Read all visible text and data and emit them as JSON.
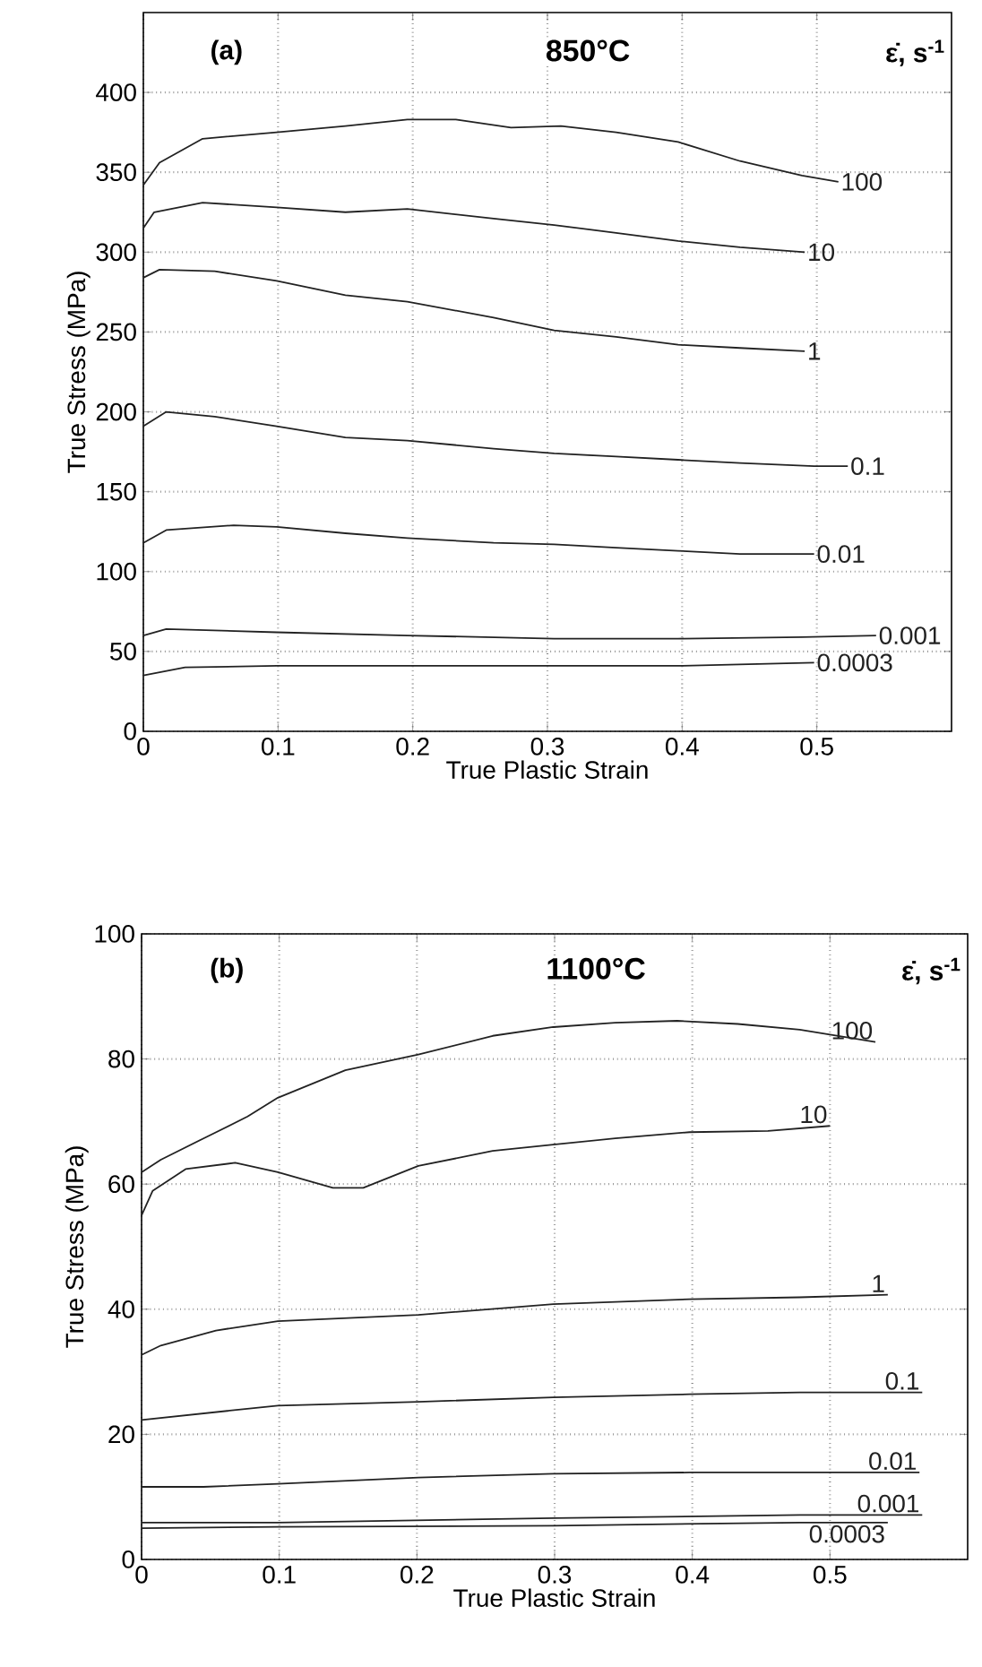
{
  "chart_data": [
    {
      "type": "line",
      "xlabel": "True Plastic Strain",
      "ylabel": "True Stress (MPa)",
      "annotations": [
        "(a)",
        "850°C"
      ],
      "legend_title": "ε̇, s$^{-1}$",
      "xlim": [
        0,
        0.6
      ],
      "ylim": [
        0,
        450
      ],
      "xticks": [
        0,
        0.1,
        0.2,
        0.3,
        0.4,
        0.5
      ],
      "yticks": [
        0,
        50,
        100,
        150,
        200,
        250,
        300,
        350,
        400
      ],
      "grid": true,
      "series": [
        {
          "name": "100",
          "color": "#222222",
          "x": [
            0,
            0.012,
            0.044,
            0.099,
            0.15,
            0.196,
            0.232,
            0.273,
            0.31,
            0.351,
            0.397,
            0.443,
            0.489,
            0.516
          ],
          "values": [
            342,
            356,
            371,
            375,
            379,
            383,
            383,
            378,
            379,
            375,
            369,
            357,
            348,
            344
          ]
        },
        {
          "name": "10",
          "color": "#222222",
          "x": [
            0,
            0.008,
            0.044,
            0.099,
            0.15,
            0.196,
            0.26,
            0.305,
            0.351,
            0.397,
            0.443,
            0.491
          ],
          "values": [
            315,
            325,
            331,
            328,
            325,
            327,
            321,
            317,
            312,
            307,
            303,
            300
          ]
        },
        {
          "name": "1",
          "color": "#222222",
          "x": [
            0,
            0.012,
            0.053,
            0.099,
            0.15,
            0.196,
            0.26,
            0.305,
            0.351,
            0.397,
            0.443,
            0.491
          ],
          "values": [
            284,
            289,
            288,
            282,
            273,
            269,
            259,
            251,
            247,
            242,
            240,
            238
          ]
        },
        {
          "name": "0.1",
          "color": "#222222",
          "x": [
            0,
            0.017,
            0.053,
            0.099,
            0.15,
            0.196,
            0.26,
            0.305,
            0.351,
            0.397,
            0.443,
            0.498,
            0.523
          ],
          "values": [
            191,
            200,
            197,
            191,
            184,
            182,
            177,
            174,
            172,
            170,
            168,
            166,
            166
          ]
        },
        {
          "name": "0.01",
          "color": "#222222",
          "x": [
            0,
            0.017,
            0.067,
            0.099,
            0.15,
            0.196,
            0.26,
            0.305,
            0.351,
            0.397,
            0.443,
            0.498
          ],
          "values": [
            118,
            126,
            129,
            128,
            124,
            121,
            118,
            117,
            115,
            113,
            111,
            111
          ]
        },
        {
          "name": "0.001",
          "color": "#222222",
          "x": [
            0,
            0.017,
            0.099,
            0.196,
            0.305,
            0.397,
            0.489,
            0.544
          ],
          "values": [
            60,
            64,
            62,
            60,
            58,
            58,
            59,
            60
          ]
        },
        {
          "name": "0.0003",
          "color": "#222222",
          "x": [
            0,
            0.031,
            0.099,
            0.196,
            0.305,
            0.397,
            0.498
          ],
          "values": [
            35,
            40,
            41,
            41,
            41,
            41,
            43
          ]
        }
      ]
    },
    {
      "type": "line",
      "xlabel": "True Plastic Strain",
      "ylabel": "True Stress (MPa)",
      "annotations": [
        "(b)",
        "1100°C"
      ],
      "legend_title": "ε̇, s$^{-1}$",
      "xlim": [
        0,
        0.6
      ],
      "ylim": [
        0,
        100
      ],
      "xticks": [
        0,
        0.1,
        0.2,
        0.3,
        0.4,
        0.5
      ],
      "yticks": [
        0,
        20,
        40,
        60,
        80,
        100
      ],
      "grid": true,
      "series": [
        {
          "name": "100",
          "color": "#222222",
          "x": [
            0,
            0.014,
            0.045,
            0.077,
            0.099,
            0.148,
            0.201,
            0.255,
            0.299,
            0.344,
            0.389,
            0.433,
            0.478,
            0.533
          ],
          "values": [
            61.9,
            63.9,
            67.3,
            70.8,
            73.8,
            78.2,
            80.7,
            83.7,
            85.1,
            85.8,
            86.1,
            85.6,
            84.7,
            82.7
          ]
        },
        {
          "name": "10",
          "color": "#222222",
          "x": [
            0,
            0.008,
            0.032,
            0.068,
            0.099,
            0.139,
            0.161,
            0.201,
            0.255,
            0.299,
            0.344,
            0.398,
            0.455,
            0.5
          ],
          "values": [
            55,
            58.9,
            62.4,
            63.4,
            61.9,
            59.4,
            59.4,
            62.9,
            65.3,
            66.3,
            67.3,
            68.3,
            68.5,
            69.3
          ]
        },
        {
          "name": "1",
          "color": "#222222",
          "x": [
            0,
            0.014,
            0.054,
            0.099,
            0.201,
            0.299,
            0.398,
            0.478,
            0.542
          ],
          "values": [
            32.7,
            34.2,
            36.6,
            38.1,
            39.1,
            40.8,
            41.6,
            41.9,
            42.3
          ]
        },
        {
          "name": "0.1",
          "color": "#222222",
          "x": [
            0,
            0.099,
            0.201,
            0.299,
            0.398,
            0.478,
            0.567
          ],
          "values": [
            22.3,
            24.6,
            25.2,
            25.9,
            26.4,
            26.7,
            26.7
          ]
        },
        {
          "name": "0.01",
          "color": "#222222",
          "x": [
            0,
            0.045,
            0.099,
            0.201,
            0.299,
            0.398,
            0.478,
            0.565
          ],
          "values": [
            11.6,
            11.6,
            12.1,
            13.1,
            13.7,
            13.9,
            13.9,
            13.9
          ]
        },
        {
          "name": "0.001",
          "color": "#222222",
          "x": [
            0,
            0.099,
            0.299,
            0.478,
            0.567
          ],
          "values": [
            5.9,
            5.9,
            6.6,
            7.1,
            7.1
          ]
        },
        {
          "name": "0.0003",
          "color": "#222222",
          "x": [
            0,
            0.099,
            0.299,
            0.478,
            0.542
          ],
          "values": [
            5.0,
            5.2,
            5.4,
            5.9,
            5.9
          ]
        }
      ]
    }
  ]
}
